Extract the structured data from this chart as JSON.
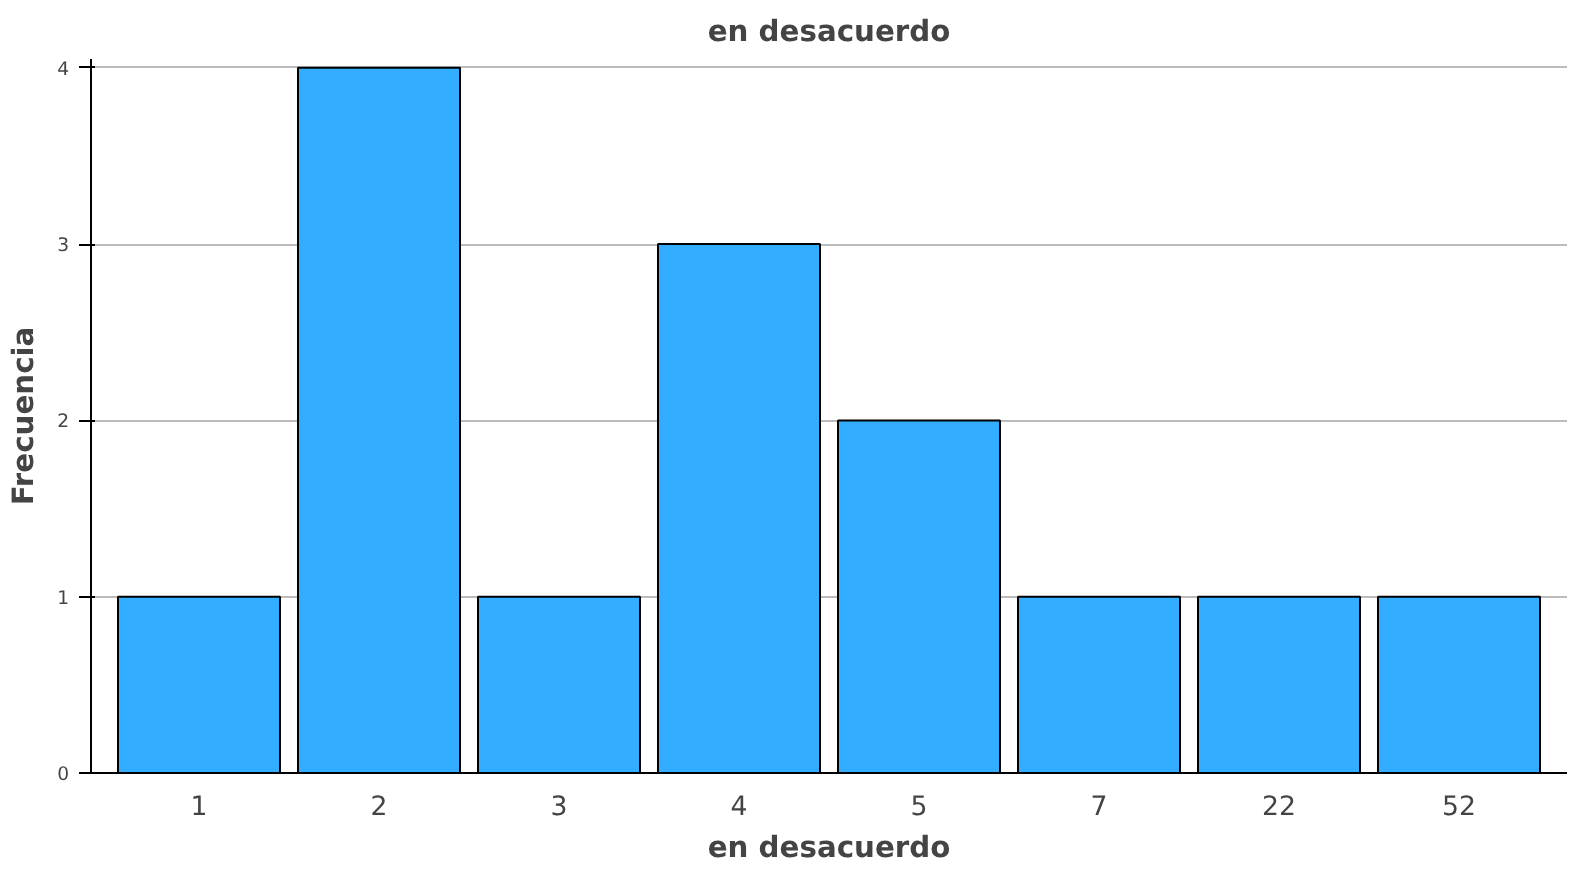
{
  "chart_data": {
    "type": "bar",
    "title": "en desacuerdo",
    "xlabel": "en desacuerdo",
    "ylabel": "Frecuencia",
    "categories": [
      "1",
      "2",
      "3",
      "4",
      "5",
      "7",
      "22",
      "52"
    ],
    "values": [
      1,
      4,
      1,
      3,
      2,
      1,
      1,
      1
    ],
    "color": "#33adff",
    "ylim": [
      0,
      4.05
    ],
    "yticks": [
      0,
      1,
      2,
      3,
      4
    ],
    "grid": "y"
  }
}
